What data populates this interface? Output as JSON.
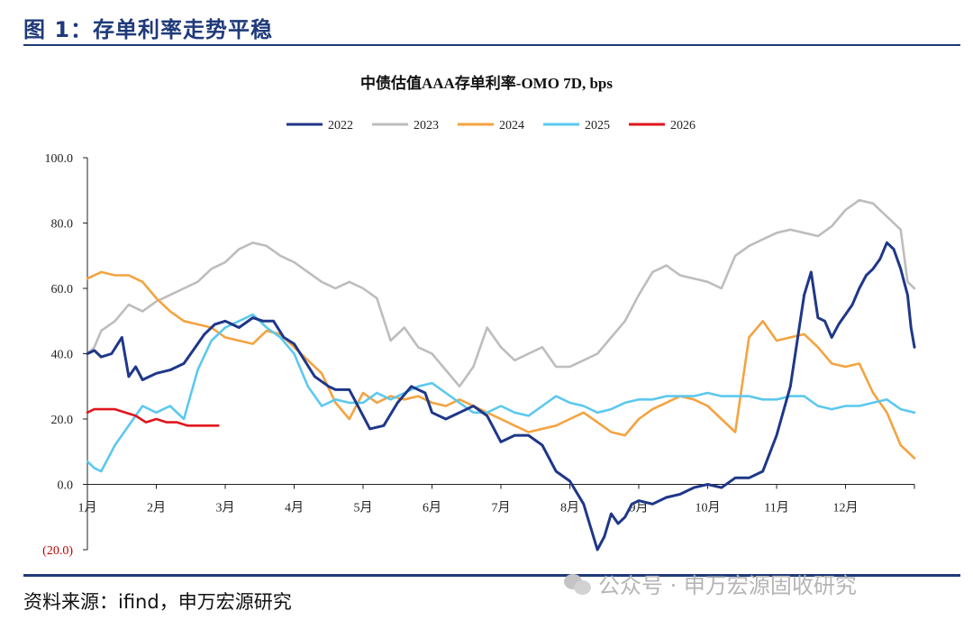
{
  "figure": {
    "title": "图 1：存单利率走势平稳",
    "source": "资料来源：ifind，申万宏源研究",
    "watermark": "公众号 · 申万宏源固收研究"
  },
  "colors": {
    "2022": "#1f3788",
    "2023": "#bdbdbd",
    "2024": "#f4a340",
    "2025": "#5cc8ee",
    "2026": "#e0161e",
    "negative_label": "#c00000",
    "brand": "#1f3a7a"
  },
  "chart_data": {
    "type": "line",
    "title": "中债估值AAA存单利率-OMO 7D, bps",
    "xlabel": "",
    "ylabel": "",
    "ylim": [
      -20,
      100
    ],
    "xlim": [
      0,
      12
    ],
    "yticks": [
      {
        "value": 100,
        "label": "100.0"
      },
      {
        "value": 80,
        "label": "80.0"
      },
      {
        "value": 60,
        "label": "60.0"
      },
      {
        "value": 40,
        "label": "40.0"
      },
      {
        "value": 20,
        "label": "20.0"
      },
      {
        "value": 0,
        "label": "0.0"
      },
      {
        "value": -20,
        "label": "(20.0)"
      }
    ],
    "xticks": [
      "1月",
      "2月",
      "3月",
      "4月",
      "5月",
      "6月",
      "7月",
      "8月",
      "9月",
      "10月",
      "11月",
      "12月"
    ],
    "legend_position": "top-center",
    "series": [
      {
        "name": "2022",
        "x": [
          0,
          0.1,
          0.2,
          0.35,
          0.5,
          0.6,
          0.7,
          0.8,
          0.9,
          1.0,
          1.2,
          1.4,
          1.6,
          1.7,
          1.85,
          2.0,
          2.2,
          2.4,
          2.55,
          2.7,
          2.85,
          3.0,
          3.15,
          3.3,
          3.5,
          3.6,
          3.8,
          3.9,
          4.1,
          4.3,
          4.5,
          4.7,
          4.9,
          5.0,
          5.2,
          5.4,
          5.6,
          5.8,
          6.0,
          6.2,
          6.4,
          6.6,
          6.8,
          7.0,
          7.2,
          7.3,
          7.4,
          7.5,
          7.6,
          7.7,
          7.8,
          7.9,
          8.0,
          8.2,
          8.4,
          8.6,
          8.8,
          9.0,
          9.2,
          9.4,
          9.6,
          9.8,
          10.0,
          10.2,
          10.4,
          10.5,
          10.6,
          10.7,
          10.8,
          10.9,
          11.0,
          11.1,
          11.2,
          11.3,
          11.4,
          11.5,
          11.6,
          11.7,
          11.8,
          11.85,
          11.9,
          11.95,
          12.0
        ],
        "values": [
          40,
          41,
          39,
          40,
          45,
          33,
          36,
          32,
          33,
          34,
          35,
          37,
          43,
          46,
          49,
          50,
          48,
          51,
          50,
          50,
          45,
          43,
          38,
          33,
          30,
          29,
          29,
          25,
          17,
          18,
          25,
          30,
          28,
          22,
          20,
          22,
          24,
          21,
          13,
          15,
          15,
          12,
          4,
          1,
          -6,
          -13,
          -20,
          -16,
          -9,
          -12,
          -10,
          -6,
          -5,
          -6,
          -4,
          -3,
          -1,
          0,
          -1,
          2,
          2,
          4,
          15,
          30,
          58,
          65,
          51,
          50,
          45,
          49,
          52,
          55,
          60,
          64,
          66,
          69,
          74,
          72,
          66,
          62,
          58,
          48,
          42
        ]
      },
      {
        "name": "2023",
        "x": [
          0,
          0.1,
          0.2,
          0.4,
          0.6,
          0.8,
          1.0,
          1.2,
          1.4,
          1.6,
          1.8,
          2.0,
          2.2,
          2.4,
          2.6,
          2.8,
          3.0,
          3.2,
          3.4,
          3.6,
          3.8,
          4.0,
          4.2,
          4.4,
          4.6,
          4.8,
          5.0,
          5.2,
          5.4,
          5.6,
          5.8,
          6.0,
          6.2,
          6.4,
          6.6,
          6.8,
          7.0,
          7.2,
          7.4,
          7.6,
          7.8,
          8.0,
          8.2,
          8.4,
          8.6,
          8.8,
          9.0,
          9.2,
          9.4,
          9.6,
          9.8,
          10.0,
          10.2,
          10.4,
          10.6,
          10.8,
          11.0,
          11.2,
          11.4,
          11.6,
          11.8,
          11.9,
          12.0
        ],
        "values": [
          40,
          42,
          47,
          50,
          55,
          53,
          56,
          58,
          60,
          62,
          66,
          68,
          72,
          74,
          73,
          70,
          68,
          65,
          62,
          60,
          62,
          60,
          57,
          44,
          48,
          42,
          40,
          35,
          30,
          36,
          48,
          42,
          38,
          40,
          42,
          36,
          36,
          38,
          40,
          45,
          50,
          58,
          65,
          67,
          64,
          63,
          62,
          60,
          70,
          73,
          75,
          77,
          78,
          77,
          76,
          79,
          84,
          87,
          86,
          82,
          78,
          62,
          60
        ]
      },
      {
        "name": "2024",
        "x": [
          0,
          0.2,
          0.4,
          0.6,
          0.8,
          1.0,
          1.2,
          1.4,
          1.6,
          1.8,
          2.0,
          2.2,
          2.4,
          2.6,
          2.8,
          3.0,
          3.2,
          3.4,
          3.6,
          3.8,
          4.0,
          4.2,
          4.4,
          4.6,
          4.8,
          5.0,
          5.2,
          5.4,
          5.6,
          5.8,
          6.0,
          6.2,
          6.4,
          6.6,
          6.8,
          7.0,
          7.2,
          7.4,
          7.6,
          7.8,
          8.0,
          8.2,
          8.4,
          8.6,
          8.8,
          9.0,
          9.2,
          9.4,
          9.6,
          9.8,
          10.0,
          10.2,
          10.4,
          10.6,
          10.8,
          11.0,
          11.2,
          11.4,
          11.6,
          11.8,
          12.0
        ],
        "values": [
          63,
          65,
          64,
          64,
          62,
          57,
          53,
          50,
          49,
          48,
          45,
          44,
          43,
          47,
          46,
          42,
          38,
          34,
          25,
          20,
          28,
          25,
          27,
          26,
          27,
          25,
          24,
          26,
          24,
          22,
          20,
          18,
          16,
          17,
          18,
          20,
          22,
          19,
          16,
          15,
          20,
          23,
          25,
          27,
          26,
          24,
          20,
          16,
          45,
          50,
          44,
          45,
          46,
          42,
          37,
          36,
          37,
          28,
          22,
          12,
          8
        ]
      },
      {
        "name": "2025",
        "x": [
          0,
          0.1,
          0.2,
          0.4,
          0.6,
          0.8,
          1.0,
          1.2,
          1.4,
          1.6,
          1.8,
          2.0,
          2.2,
          2.4,
          2.6,
          2.8,
          3.0,
          3.2,
          3.4,
          3.6,
          3.8,
          4.0,
          4.2,
          4.4,
          4.6,
          4.8,
          5.0,
          5.2,
          5.4,
          5.6,
          5.8,
          6.0,
          6.2,
          6.4,
          6.6,
          6.8,
          7.0,
          7.2,
          7.4,
          7.6,
          7.8,
          8.0,
          8.2,
          8.4,
          8.6,
          8.8,
          9.0,
          9.2,
          9.4,
          9.6,
          9.8,
          10.0,
          10.2,
          10.4,
          10.6,
          10.8,
          11.0,
          11.2,
          11.4,
          11.6,
          11.8,
          12.0
        ],
        "values": [
          7,
          5,
          4,
          12,
          18,
          24,
          22,
          24,
          20,
          35,
          44,
          48,
          50,
          52,
          48,
          45,
          40,
          30,
          24,
          26,
          25,
          25,
          28,
          26,
          28,
          30,
          31,
          28,
          25,
          22,
          22,
          24,
          22,
          21,
          24,
          27,
          25,
          24,
          22,
          23,
          25,
          26,
          26,
          27,
          27,
          27,
          28,
          27,
          27,
          27,
          26,
          26,
          27,
          27,
          24,
          23,
          24,
          24,
          25,
          26,
          23,
          22
        ]
      },
      {
        "name": "2026",
        "x": [
          0,
          0.1,
          0.25,
          0.4,
          0.55,
          0.7,
          0.85,
          1.0,
          1.15,
          1.3,
          1.45,
          1.6,
          1.75,
          1.9
        ],
        "values": [
          22,
          23,
          23,
          23,
          22,
          21,
          19,
          20,
          19,
          19,
          18,
          18,
          18,
          18
        ]
      }
    ]
  }
}
